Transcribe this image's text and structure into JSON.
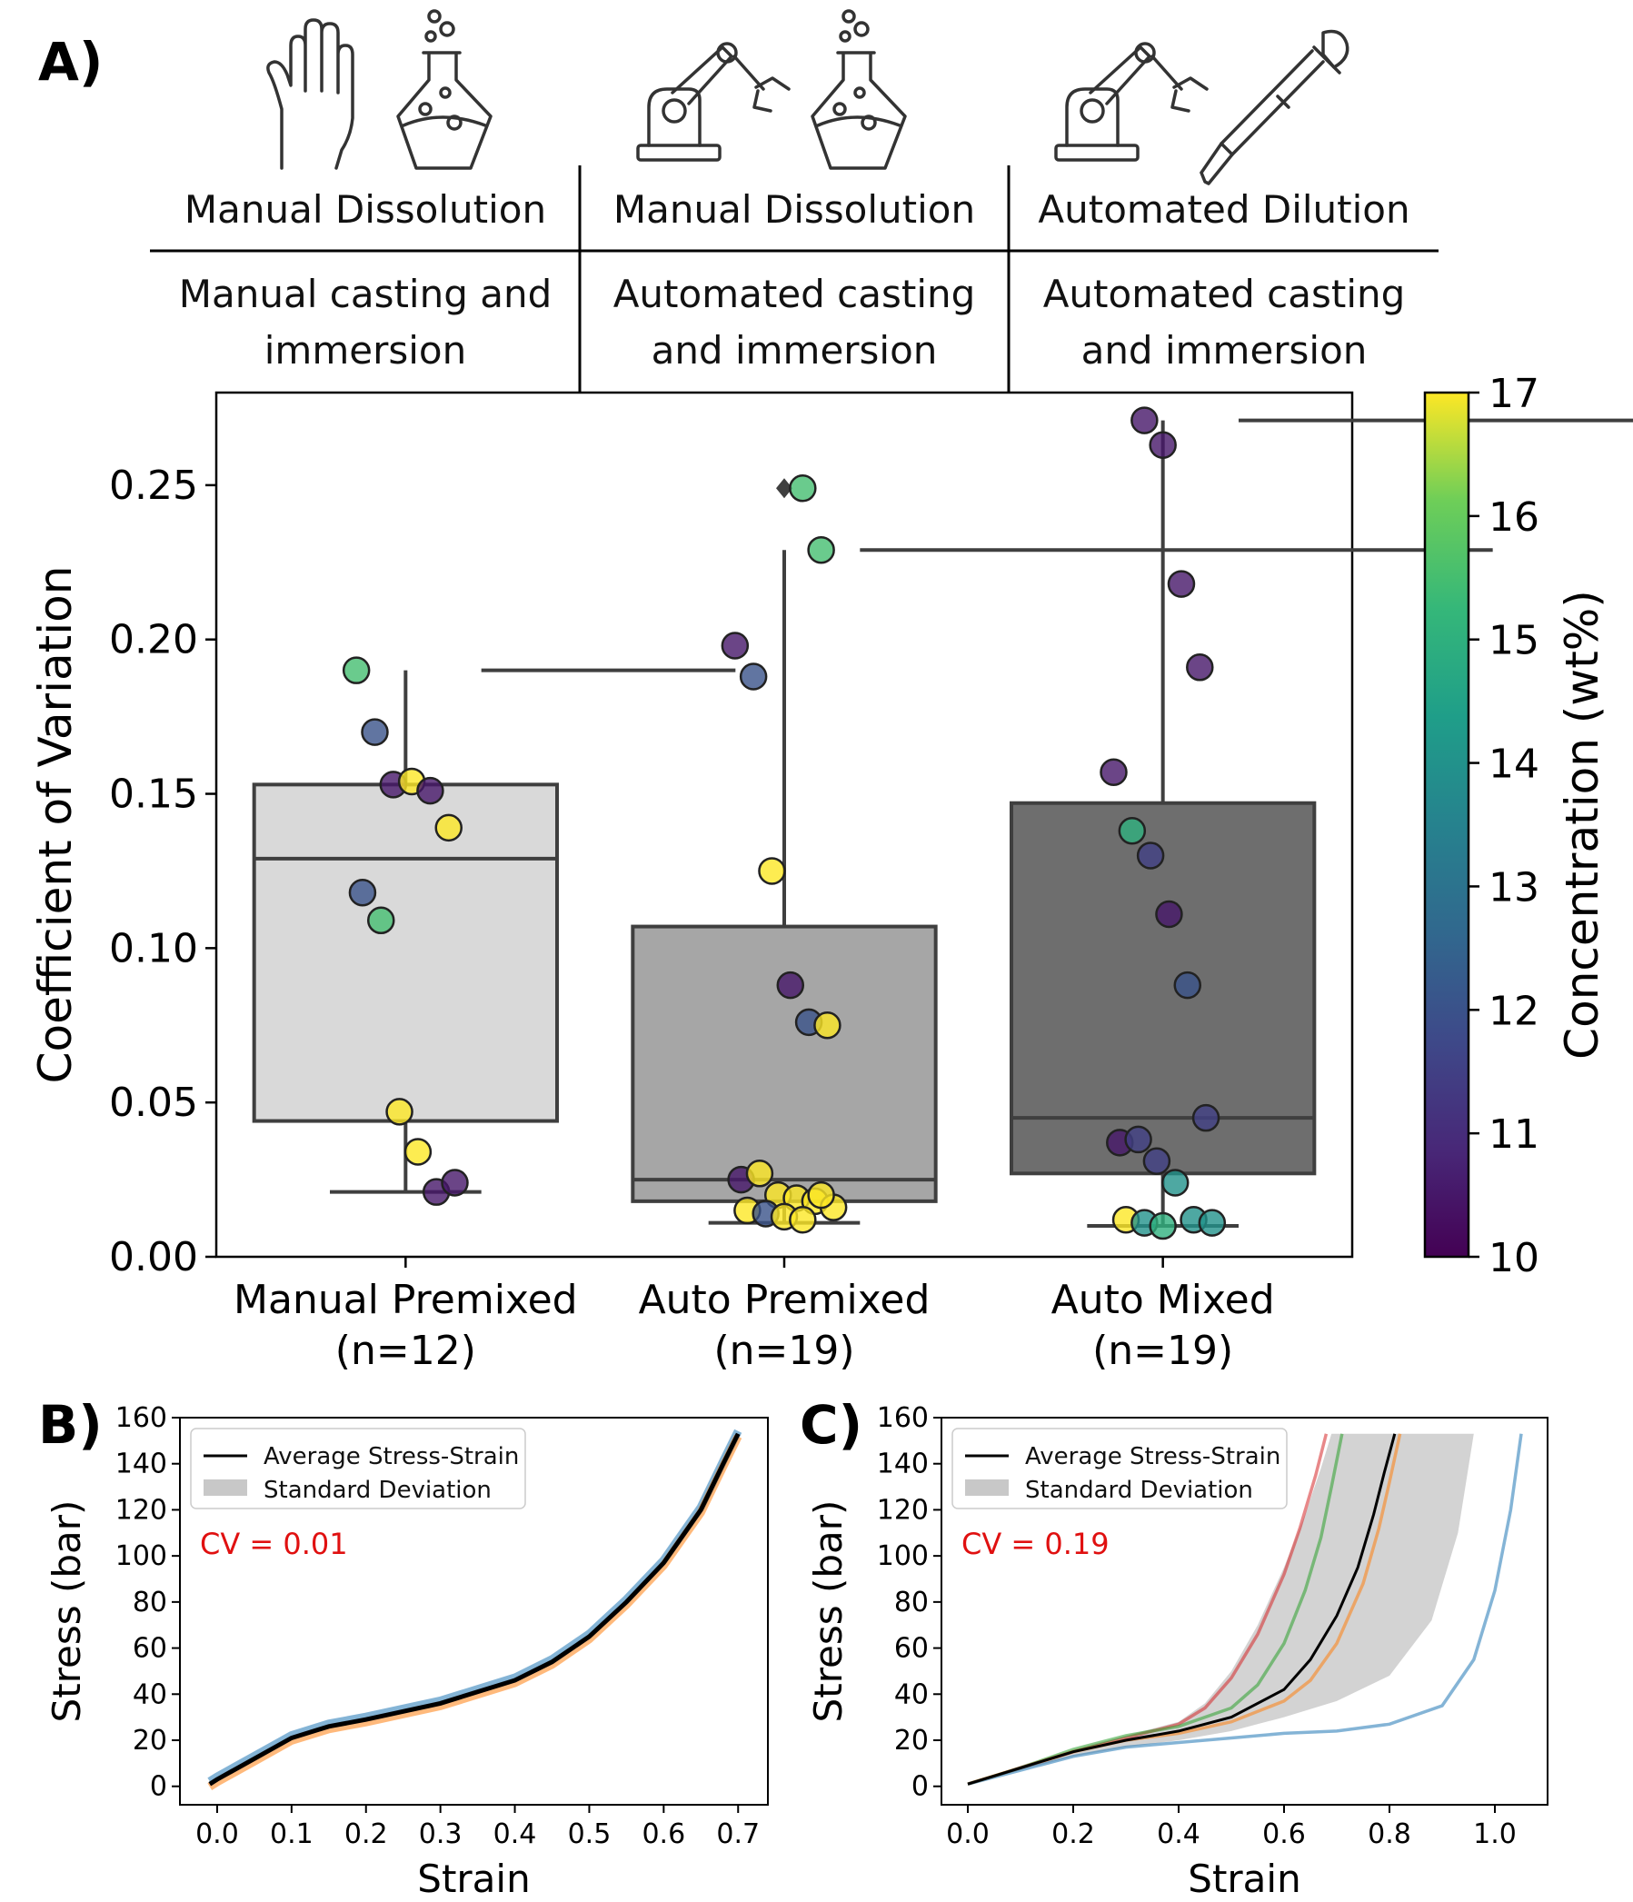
{
  "panels": {
    "a": "A)",
    "b": "B)",
    "c": "C)"
  },
  "header": {
    "columns": [
      {
        "line1": "Manual Dissolution",
        "line2": "Manual casting and",
        "line3": "immersion",
        "icons": [
          "hand-icon",
          "flask-icon"
        ]
      },
      {
        "line1": "Manual Dissolution",
        "line2": "Automated casting",
        "line3": "and immersion",
        "icons": [
          "robot-arm-icon",
          "flask-icon"
        ]
      },
      {
        "line1": "Automated Dilution",
        "line2": "Automated casting",
        "line3": "and immersion",
        "icons": [
          "robot-arm-icon",
          "pipette-icon"
        ]
      }
    ]
  },
  "chart_data": [
    {
      "type": "box",
      "ylabel": "Coefficient of Variation",
      "ylim": [
        0,
        0.28
      ],
      "yticks": [
        "0.00",
        "0.05",
        "0.10",
        "0.15",
        "0.20",
        "0.25"
      ],
      "categories": [
        "Manual Premixed",
        "Auto Premixed",
        "Auto Mixed"
      ],
      "category_counts": [
        "(n=12)",
        "(n=19)",
        "(n=19)"
      ],
      "box_colors": [
        "#d9d9d9",
        "#a6a6a6",
        "#6e6e6e"
      ],
      "boxes": [
        {
          "whisker_low": 0.021,
          "q1": 0.044,
          "median": 0.129,
          "q3": 0.153,
          "whisker_high": 0.19,
          "outliers": []
        },
        {
          "whisker_low": 0.011,
          "q1": 0.018,
          "median": 0.025,
          "q3": 0.107,
          "whisker_high": 0.229,
          "outliers": [
            0.249
          ]
        },
        {
          "whisker_low": 0.01,
          "q1": 0.027,
          "median": 0.045,
          "q3": 0.147,
          "whisker_high": 0.271,
          "outliers": []
        }
      ],
      "points": [
        [
          {
            "y": 0.19,
            "c": 15.5
          },
          {
            "y": 0.17,
            "c": 12.0
          },
          {
            "y": 0.153,
            "c": 10.5
          },
          {
            "y": 0.154,
            "c": 17.0
          },
          {
            "y": 0.151,
            "c": 10.5
          },
          {
            "y": 0.139,
            "c": 17.0
          },
          {
            "y": 0.118,
            "c": 12.0
          },
          {
            "y": 0.109,
            "c": 15.5
          },
          {
            "y": 0.047,
            "c": 17.0
          },
          {
            "y": 0.034,
            "c": 17.0
          },
          {
            "y": 0.021,
            "c": 10.5
          },
          {
            "y": 0.024,
            "c": 10.5
          }
        ],
        [
          {
            "y": 0.249,
            "c": 15.5
          },
          {
            "y": 0.229,
            "c": 15.5
          },
          {
            "y": 0.198,
            "c": 10.5
          },
          {
            "y": 0.188,
            "c": 12.0
          },
          {
            "y": 0.125,
            "c": 17.0
          },
          {
            "y": 0.088,
            "c": 10.5
          },
          {
            "y": 0.076,
            "c": 12.0
          },
          {
            "y": 0.075,
            "c": 17.0
          },
          {
            "y": 0.025,
            "c": 10.5
          },
          {
            "y": 0.027,
            "c": 17.0
          },
          {
            "y": 0.02,
            "c": 17.0
          },
          {
            "y": 0.019,
            "c": 17.0
          },
          {
            "y": 0.018,
            "c": 17.0
          },
          {
            "y": 0.016,
            "c": 17.0
          },
          {
            "y": 0.015,
            "c": 17.0
          },
          {
            "y": 0.014,
            "c": 12.0
          },
          {
            "y": 0.013,
            "c": 17.0
          },
          {
            "y": 0.012,
            "c": 17.0
          },
          {
            "y": 0.02,
            "c": 17.0
          }
        ],
        [
          {
            "y": 0.271,
            "c": 10.5
          },
          {
            "y": 0.263,
            "c": 10.5
          },
          {
            "y": 0.218,
            "c": 10.5
          },
          {
            "y": 0.191,
            "c": 10.5
          },
          {
            "y": 0.157,
            "c": 10.5
          },
          {
            "y": 0.138,
            "c": 15.0
          },
          {
            "y": 0.13,
            "c": 11.5
          },
          {
            "y": 0.111,
            "c": 10.5
          },
          {
            "y": 0.088,
            "c": 12.0
          },
          {
            "y": 0.045,
            "c": 11.5
          },
          {
            "y": 0.037,
            "c": 10.5
          },
          {
            "y": 0.038,
            "c": 11.5
          },
          {
            "y": 0.031,
            "c": 11.5
          },
          {
            "y": 0.024,
            "c": 14.0
          },
          {
            "y": 0.012,
            "c": 14.0
          },
          {
            "y": 0.011,
            "c": 14.0
          },
          {
            "y": 0.012,
            "c": 17.0
          },
          {
            "y": 0.011,
            "c": 14.0
          },
          {
            "y": 0.01,
            "c": 15.0
          }
        ]
      ],
      "colorbar": {
        "label": "Concentration (wt%)",
        "min": 10,
        "max": 17,
        "ticks": [
          "10",
          "11",
          "12",
          "13",
          "14",
          "15",
          "16",
          "17"
        ],
        "colormap": "viridis"
      }
    },
    {
      "type": "line",
      "xlabel": "Strain",
      "ylabel": "Stress (bar)",
      "xlim": [
        -0.05,
        0.74
      ],
      "ylim": [
        -8,
        160
      ],
      "xticks": [
        "0.0",
        "0.1",
        "0.2",
        "0.3",
        "0.4",
        "0.5",
        "0.6",
        "0.7"
      ],
      "yticks": [
        "0",
        "20",
        "40",
        "60",
        "80",
        "100",
        "120",
        "140",
        "160"
      ],
      "legend": {
        "position": "top-left",
        "entries": [
          "Average Stress-Strain",
          "Standard Deviation"
        ]
      },
      "annotation": "CV = 0.01",
      "average": {
        "x": [
          -0.01,
          0.0,
          0.05,
          0.1,
          0.15,
          0.2,
          0.3,
          0.4,
          0.45,
          0.5,
          0.55,
          0.6,
          0.65,
          0.68,
          0.7
        ],
        "y": [
          1,
          3,
          12,
          21,
          26,
          29,
          36,
          46,
          54,
          65,
          80,
          97,
          120,
          140,
          153
        ]
      },
      "replicate_colors": [
        "#1f77b4",
        "#ff7f0e"
      ]
    },
    {
      "type": "line",
      "xlabel": "Strain",
      "ylabel": "Stress (bar)",
      "xlim": [
        -0.05,
        1.1
      ],
      "ylim": [
        -8,
        160
      ],
      "xticks": [
        "0.0",
        "0.2",
        "0.4",
        "0.6",
        "0.8",
        "1.0"
      ],
      "yticks": [
        "0",
        "20",
        "40",
        "60",
        "80",
        "100",
        "120",
        "140",
        "160"
      ],
      "legend": {
        "position": "top-left",
        "entries": [
          "Average Stress-Strain",
          "Standard Deviation"
        ]
      },
      "annotation": "CV = 0.19",
      "average": {
        "x": [
          0,
          0.1,
          0.2,
          0.3,
          0.4,
          0.5,
          0.6,
          0.65,
          0.7,
          0.74,
          0.77,
          0.79,
          0.81
        ],
        "y": [
          1,
          8,
          15,
          20,
          24,
          30,
          42,
          55,
          74,
          95,
          118,
          136,
          153
        ]
      },
      "std_lower": {
        "x": [
          0,
          0.1,
          0.2,
          0.3,
          0.4,
          0.5,
          0.6,
          0.7,
          0.8,
          0.88,
          0.93,
          0.96
        ],
        "y": [
          1,
          7,
          13,
          17,
          20,
          24,
          30,
          37,
          48,
          72,
          110,
          153
        ]
      },
      "std_upper": {
        "x": [
          0,
          0.1,
          0.2,
          0.3,
          0.4,
          0.45,
          0.5,
          0.55,
          0.6,
          0.64,
          0.67,
          0.69
        ],
        "y": [
          1,
          9,
          16,
          22,
          28,
          36,
          50,
          70,
          95,
          118,
          138,
          153
        ]
      },
      "replicates": [
        {
          "color": "#d62728",
          "x": [
            0,
            0.1,
            0.2,
            0.3,
            0.4,
            0.45,
            0.5,
            0.55,
            0.6,
            0.63,
            0.66,
            0.68
          ],
          "y": [
            1,
            8,
            15,
            21,
            27,
            34,
            47,
            66,
            92,
            112,
            135,
            153
          ]
        },
        {
          "color": "#2ca02c",
          "x": [
            0,
            0.1,
            0.2,
            0.3,
            0.4,
            0.5,
            0.55,
            0.6,
            0.64,
            0.67,
            0.69,
            0.71
          ],
          "y": [
            1,
            8,
            16,
            22,
            26,
            34,
            44,
            62,
            85,
            108,
            130,
            153
          ]
        },
        {
          "color": "#ff7f0e",
          "x": [
            0,
            0.1,
            0.2,
            0.3,
            0.4,
            0.5,
            0.6,
            0.65,
            0.7,
            0.75,
            0.78,
            0.8,
            0.82
          ],
          "y": [
            1,
            8,
            15,
            20,
            23,
            28,
            37,
            46,
            62,
            88,
            112,
            132,
            153
          ]
        },
        {
          "color": "#1f77b4",
          "x": [
            0,
            0.1,
            0.2,
            0.3,
            0.4,
            0.5,
            0.6,
            0.7,
            0.8,
            0.9,
            0.96,
            1.0,
            1.03,
            1.05
          ],
          "y": [
            1,
            7,
            13,
            17,
            19,
            21,
            23,
            24,
            27,
            35,
            55,
            85,
            120,
            153
          ]
        }
      ]
    }
  ]
}
